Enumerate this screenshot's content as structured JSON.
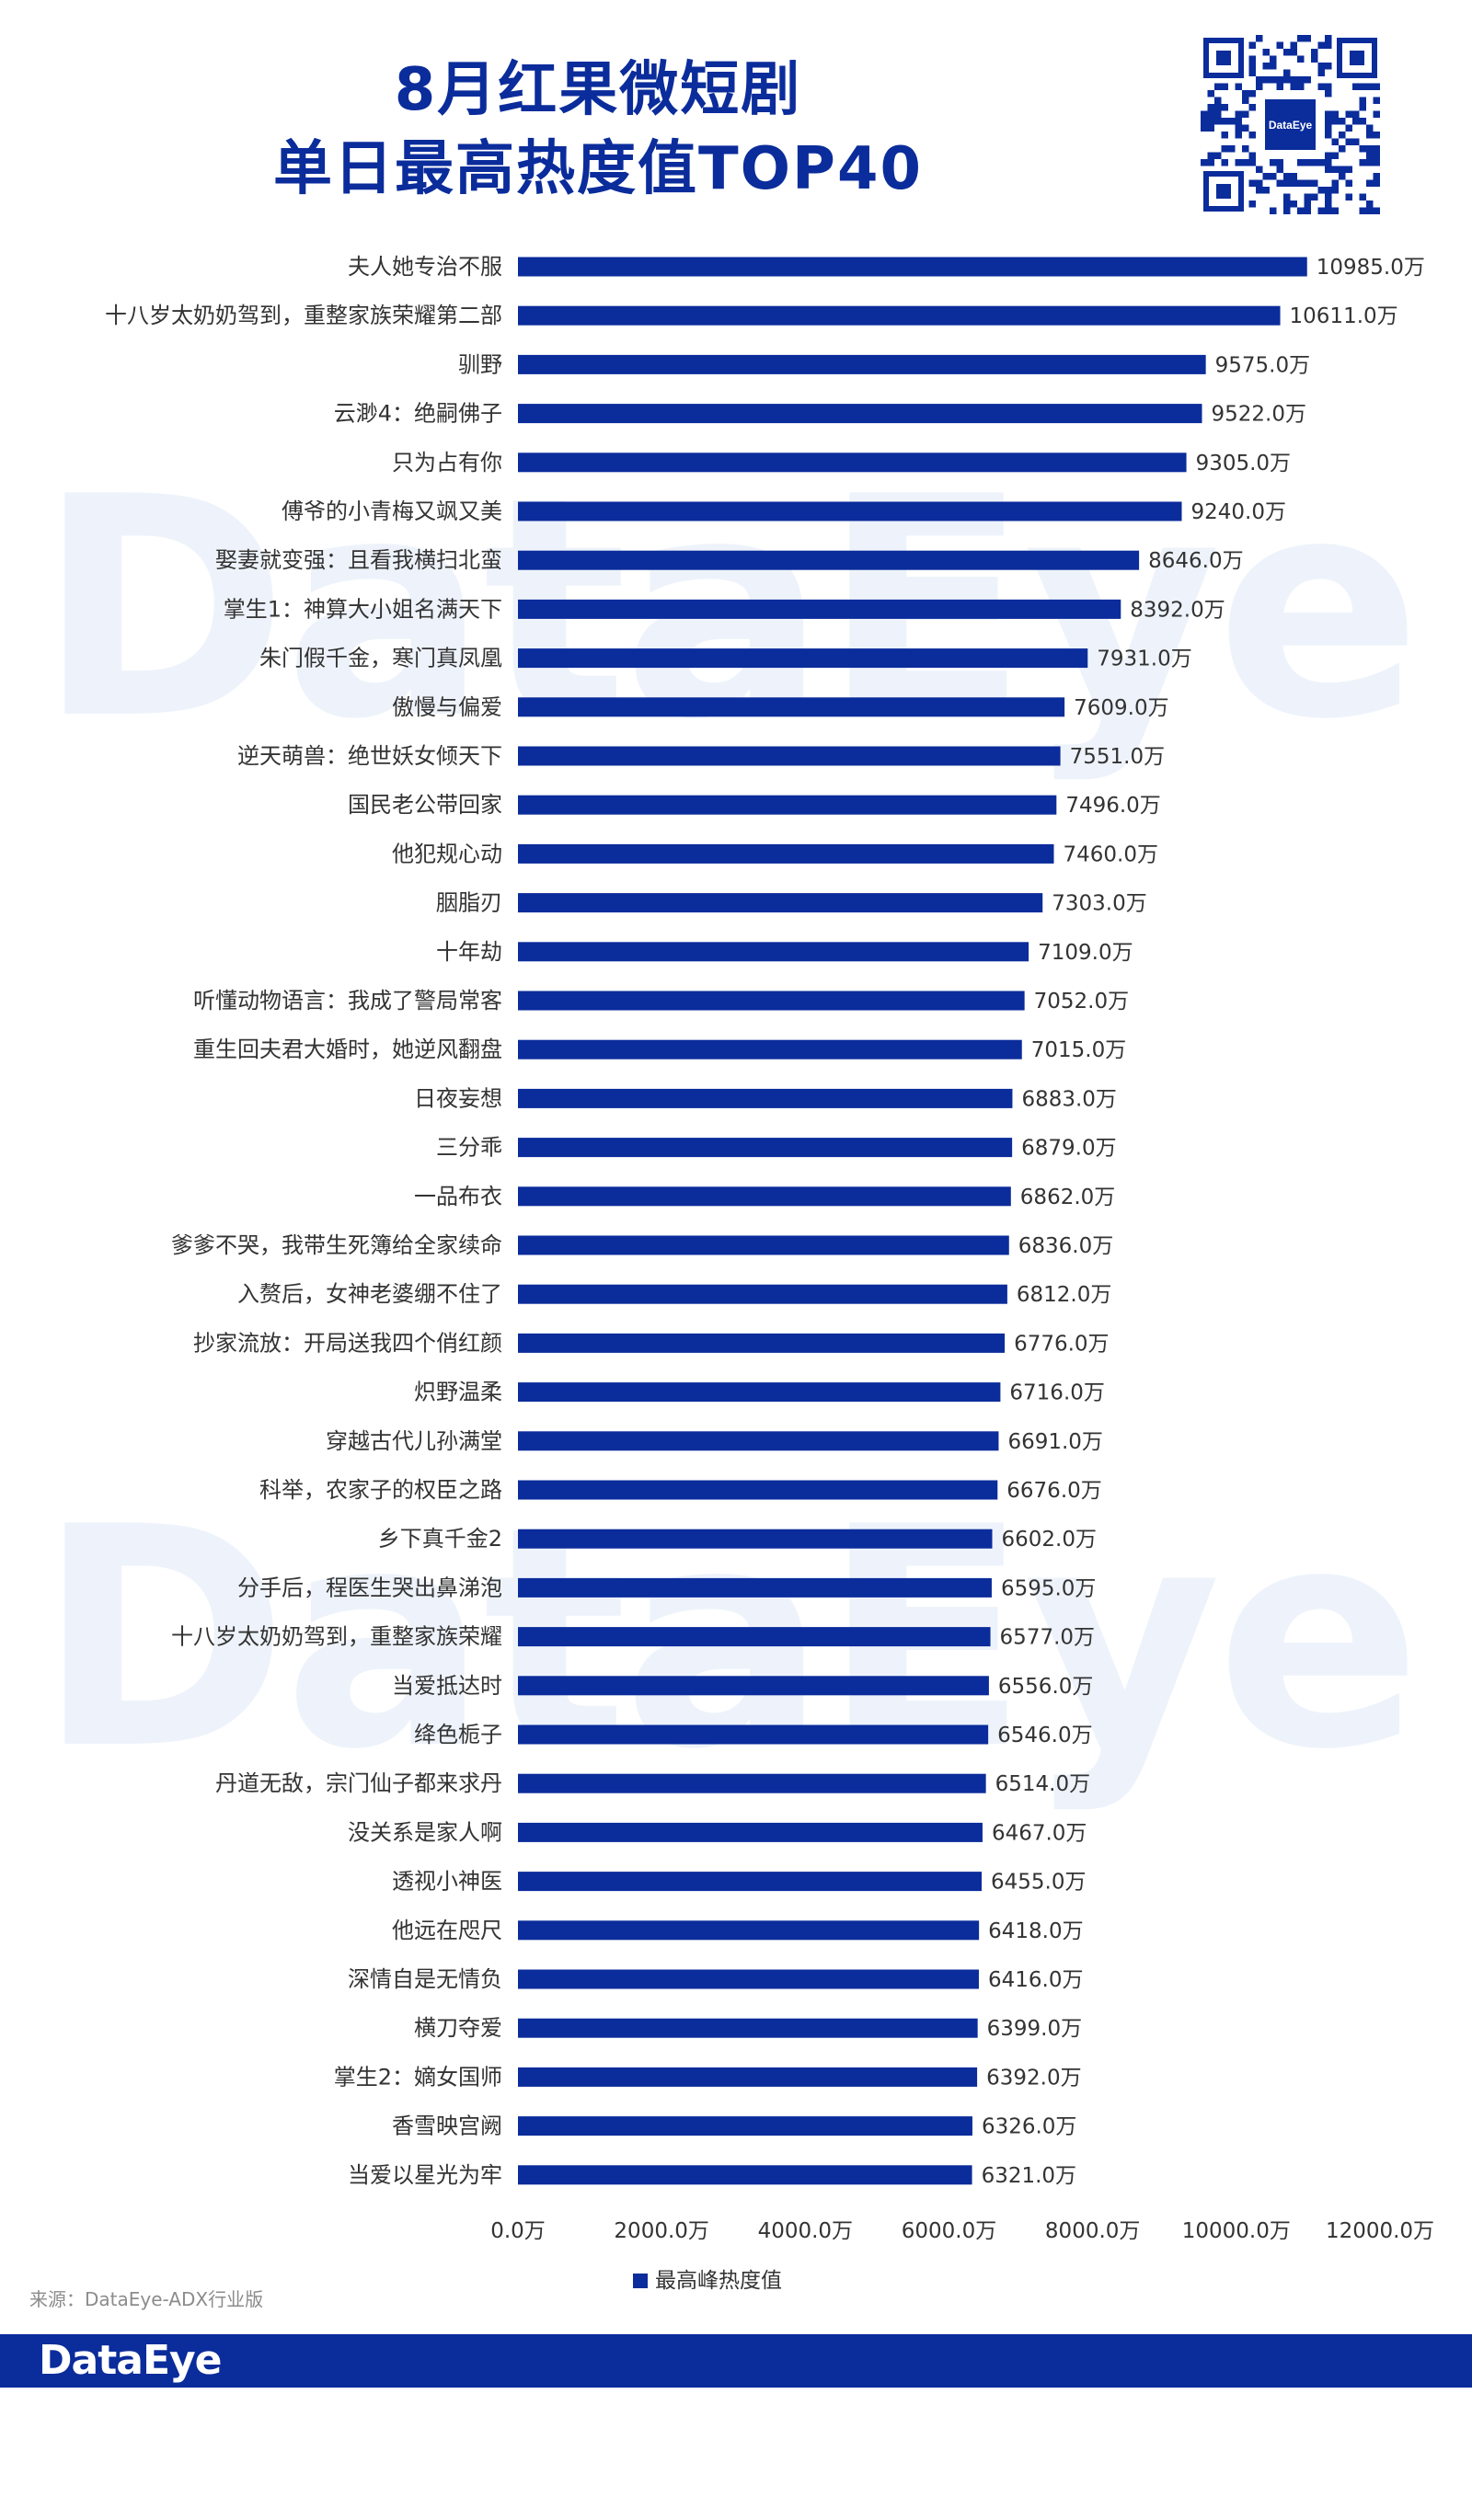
{
  "header": {
    "title_line1": "8月红果微短剧",
    "title_line2": "单日最高热度值TOP40"
  },
  "qr_badge": "DataEye",
  "watermark": "DataEye",
  "source": "来源：DataEye-ADX行业版",
  "footer_logo": "DataEye",
  "colors": {
    "bar": "#0b2c9b",
    "title": "#0b2c9b",
    "footer": "#0b2c9b"
  },
  "chart_data": {
    "type": "bar",
    "orientation": "horizontal",
    "categories": [
      "夫人她专治不服",
      "十八岁太奶奶驾到，重整家族荣耀第二部",
      "驯野",
      "云渺4：绝嗣佛子",
      "只为占有你",
      "傅爷的小青梅又飒又美",
      "娶妻就变强：且看我横扫北蛮",
      "掌生1：神算大小姐名满天下",
      "朱门假千金，寒门真凤凰",
      "傲慢与偏爱",
      "逆天萌兽：绝世妖女倾天下",
      "国民老公带回家",
      "他犯规心动",
      "胭脂刃",
      "十年劫",
      "听懂动物语言：我成了警局常客",
      "重生回夫君大婚时，她逆风翻盘",
      "日夜妄想",
      "三分乖",
      "一品布衣",
      "爹爹不哭，我带生死簿给全家续命",
      "入赘后，女神老婆绷不住了",
      "抄家流放：开局送我四个俏红颜",
      "炽野温柔",
      "穿越古代儿孙满堂",
      "科举，农家子的权臣之路",
      "乡下真千金2",
      "分手后，程医生哭出鼻涕泡",
      "十八岁太奶奶驾到，重整家族荣耀",
      "当爱抵达时",
      "绛色栀子",
      "丹道无敌，宗门仙子都来求丹",
      "没关系是家人啊",
      "透视小神医",
      "他远在咫尺",
      "深情自是无情负",
      "横刀夺爱",
      "掌生2：嫡女国师",
      "香雪映宫阙",
      "当爱以星光为牢"
    ],
    "values": [
      10985.0,
      10611.0,
      9575.0,
      9522.0,
      9305.0,
      9240.0,
      8646.0,
      8392.0,
      7931.0,
      7609.0,
      7551.0,
      7496.0,
      7460.0,
      7303.0,
      7109.0,
      7052.0,
      7015.0,
      6883.0,
      6879.0,
      6862.0,
      6836.0,
      6812.0,
      6776.0,
      6716.0,
      6691.0,
      6676.0,
      6602.0,
      6595.0,
      6577.0,
      6556.0,
      6546.0,
      6514.0,
      6467.0,
      6455.0,
      6418.0,
      6416.0,
      6399.0,
      6392.0,
      6326.0,
      6321.0
    ],
    "value_labels": [
      "10985.0万",
      "10611.0万",
      "9575.0万",
      "9522.0万",
      "9305.0万",
      "9240.0万",
      "8646.0万",
      "8392.0万",
      "7931.0万",
      "7609.0万",
      "7551.0万",
      "7496.0万",
      "7460.0万",
      "7303.0万",
      "7109.0万",
      "7052.0万",
      "7015.0万",
      "6883.0万",
      "6879.0万",
      "6862.0万",
      "6836.0万",
      "6812.0万",
      "6776.0万",
      "6716.0万",
      "6691.0万",
      "6676.0万",
      "6602.0万",
      "6595.0万",
      "6577.0万",
      "6556.0万",
      "6546.0万",
      "6514.0万",
      "6467.0万",
      "6455.0万",
      "6418.0万",
      "6416.0万",
      "6399.0万",
      "6392.0万",
      "6326.0万",
      "6321.0万"
    ],
    "xlim": [
      0,
      12000
    ],
    "x_ticks": [
      0,
      2000,
      4000,
      6000,
      8000,
      10000,
      12000
    ],
    "x_tick_labels": [
      "0.0万",
      "2000.0万",
      "4000.0万",
      "6000.0万",
      "8000.0万",
      "10000.0万",
      "12000.0万"
    ],
    "series_name": "最高峰热度值",
    "legend_position": "bottom-center",
    "grid": false
  }
}
